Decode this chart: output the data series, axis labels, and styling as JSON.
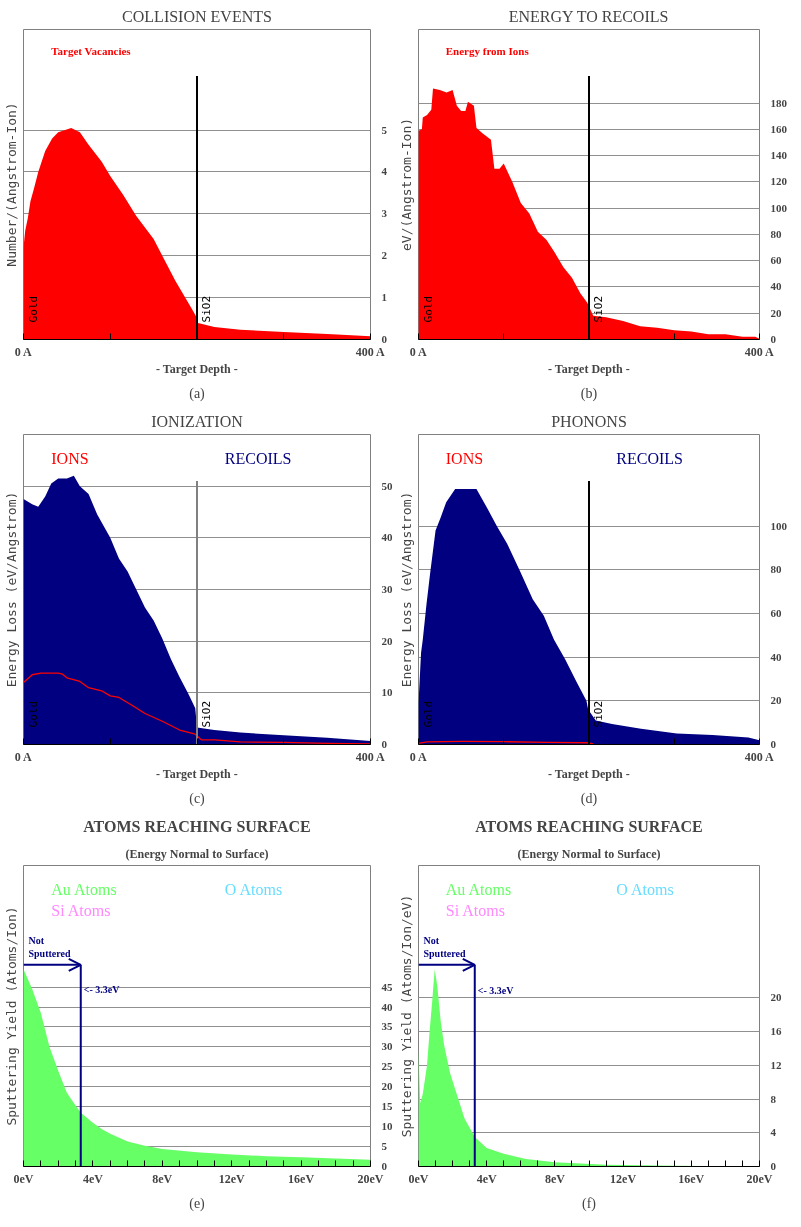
{
  "chart_data": [
    {
      "type": "area",
      "title": "COLLISION EVENTS",
      "ylabel": "Number/(Angstrom-Ion)",
      "xlabel": "- Target Depth -",
      "xlim": [
        0,
        400
      ],
      "ylim": [
        0,
        7.4
      ],
      "xticks": [
        {
          "value": 0,
          "label": "0 A"
        },
        {
          "value": 100,
          "label": null
        },
        {
          "value": 200,
          "label": null
        },
        {
          "value": 300,
          "label": null
        },
        {
          "value": 400,
          "label": "400 A"
        }
      ],
      "yticks": [
        0,
        1,
        2,
        3,
        4,
        5
      ],
      "grid": "y",
      "x": [
        0,
        2,
        5,
        8,
        12,
        17,
        25,
        33,
        40,
        55,
        65,
        75,
        90,
        100,
        115,
        130,
        150,
        160,
        175,
        185,
        195,
        199,
        200,
        220,
        250,
        300,
        350,
        400
      ],
      "series": [
        {
          "name": "Target Vacancies",
          "color": "#ff0000",
          "values": [
            2.2,
            2.6,
            2.9,
            3.3,
            3.6,
            4.0,
            4.5,
            4.8,
            4.95,
            5.05,
            4.95,
            4.65,
            4.25,
            3.9,
            3.45,
            2.95,
            2.4,
            2.0,
            1.4,
            1.05,
            0.7,
            0.55,
            0.4,
            0.3,
            0.23,
            0.18,
            0.13,
            0.08
          ]
        }
      ],
      "ref_lines": [
        {
          "axis": "x",
          "value": 200,
          "color": "#000000"
        }
      ],
      "annotations": [
        "Gold",
        "SiO2",
        "(a)"
      ]
    },
    {
      "type": "area",
      "title": "ENERGY TO RECOILS",
      "ylabel": "eV/(Angstrom-Ion)",
      "xlabel": "- Target Depth -",
      "xlim": [
        0,
        400
      ],
      "ylim": [
        0,
        236
      ],
      "xticks": [
        {
          "value": 0,
          "label": "0 A"
        },
        {
          "value": 100,
          "label": null
        },
        {
          "value": 200,
          "label": null
        },
        {
          "value": 300,
          "label": null
        },
        {
          "value": 400,
          "label": "400 A"
        }
      ],
      "yticks": [
        0,
        20,
        40,
        60,
        80,
        100,
        120,
        140,
        160,
        180
      ],
      "grid": "y",
      "x": [
        0,
        4,
        5,
        10,
        15,
        17,
        25,
        33,
        40,
        45,
        50,
        55,
        58,
        65,
        68,
        75,
        85,
        89,
        95,
        100,
        110,
        120,
        130,
        140,
        150,
        160,
        170,
        180,
        190,
        198,
        205,
        220,
        240,
        260,
        280,
        300,
        320,
        340,
        360,
        380,
        395,
        400
      ],
      "series": [
        {
          "name": "Energy from Ions",
          "color": "#ff0000",
          "values": [
            159,
            160,
            169,
            171,
            175,
            191,
            190,
            188,
            190,
            178,
            174,
            174,
            181,
            178,
            161,
            157,
            152,
            130,
            130,
            134,
            120,
            104,
            96,
            82,
            76,
            66,
            55,
            47,
            35,
            28,
            18,
            17,
            14,
            10,
            9,
            7,
            6,
            4,
            4,
            2,
            2,
            0.5
          ]
        }
      ],
      "ref_lines": [
        {
          "axis": "x",
          "value": 200,
          "color": "#000000"
        }
      ],
      "annotations": [
        "Gold",
        "SiO2",
        "(b)"
      ]
    },
    {
      "type": "area",
      "title": "IONIZATION",
      "ylabel": "Energy Loss (eV/Angstrom)",
      "xlabel": "- Target Depth -",
      "xlim": [
        0,
        400
      ],
      "ylim": [
        0,
        60
      ],
      "xticks": [
        {
          "value": 0,
          "label": "0 A"
        },
        {
          "value": 100,
          "label": null
        },
        {
          "value": 200,
          "label": null
        },
        {
          "value": 300,
          "label": null
        },
        {
          "value": 400,
          "label": "400 A"
        }
      ],
      "yticks": [
        0,
        10,
        20,
        30,
        40,
        50
      ],
      "grid": "y",
      "series": [
        {
          "name": "IONS",
          "type": "line",
          "color": "#ff0000",
          "x": [
            0,
            10,
            20,
            40,
            45,
            50,
            65,
            75,
            90,
            100,
            110,
            125,
            140,
            160,
            180,
            198,
            205,
            220,
            250,
            300,
            350,
            400
          ],
          "values": [
            12,
            13.5,
            13.8,
            13.8,
            13.6,
            12.9,
            12.2,
            11,
            10.4,
            9.4,
            9.1,
            7.6,
            6,
            4.5,
            2.8,
            2,
            0.9,
            0.9,
            0.5,
            0.4,
            0.2,
            0.1
          ]
        },
        {
          "name": "RECOILS",
          "color": "#000080",
          "x": [
            0,
            10,
            17,
            25,
            32,
            40,
            50,
            58,
            65,
            75,
            85,
            100,
            110,
            120,
            130,
            140,
            150,
            160,
            170,
            180,
            190,
            198,
            200,
            220,
            250,
            300,
            350,
            400
          ],
          "values": [
            47.5,
            46.5,
            46,
            48,
            50.5,
            51.5,
            51.5,
            52,
            50,
            48.5,
            44.5,
            40,
            36,
            33.5,
            30,
            26.5,
            24,
            20.5,
            16.5,
            13,
            9.8,
            7,
            3.3,
            2.8,
            2.3,
            1.8,
            1.3,
            0.7
          ]
        }
      ],
      "ref_lines": [
        {
          "axis": "x",
          "value": 200,
          "color": "#808080"
        }
      ],
      "annotations": [
        "Gold",
        "SiO2",
        "(c)"
      ]
    },
    {
      "type": "area",
      "title": "PHONONS",
      "ylabel": "Energy Loss (eV/Angstrom)",
      "xlabel": "- Target Depth -",
      "xlim": [
        0,
        400
      ],
      "ylim": [
        0,
        142
      ],
      "xticks": [
        {
          "value": 0,
          "label": "0 A"
        },
        {
          "value": 100,
          "label": null
        },
        {
          "value": 200,
          "label": null
        },
        {
          "value": 300,
          "label": null
        },
        {
          "value": 400,
          "label": "400 A"
        }
      ],
      "yticks": [
        0,
        20,
        40,
        60,
        80,
        100
      ],
      "grid": "y",
      "series": [
        {
          "name": "IONS",
          "type": "line",
          "color": "#ff0000",
          "x": [
            0,
            10,
            50,
            100,
            150,
            198,
            205
          ],
          "values": [
            0.5,
            1.2,
            1.4,
            1.3,
            1.0,
            0.8,
            0.3
          ]
        },
        {
          "name": "RECOILS",
          "color": "#000080",
          "x": [
            0,
            3,
            5,
            9.3,
            13.5,
            20,
            26,
            32.5,
            43,
            68,
            81,
            92,
            104,
            119,
            134,
            147,
            159,
            172,
            185,
            197,
            199,
            208,
            227,
            261,
            303,
            345,
            387,
            400
          ],
          "values": [
            19,
            42,
            48,
            64,
            78,
            98,
            104,
            111,
            117,
            117,
            108,
            100,
            92,
            79.5,
            66.5,
            59,
            48,
            39,
            29,
            20,
            16,
            11,
            9.4,
            7.2,
            5,
            4.3,
            3.2,
            2
          ]
        }
      ],
      "ref_lines": [
        {
          "axis": "x",
          "value": 200,
          "color": "#000000"
        }
      ],
      "annotations": [
        "Gold",
        "SiO2",
        "(d)"
      ]
    },
    {
      "type": "area",
      "title": "ATOMS REACHING SURFACE",
      "subtitle": "(Energy Normal to Surface)",
      "ylabel": "Sputtering Yield (Atoms/Ion)",
      "xlim": [
        0,
        20
      ],
      "ylim": [
        0,
        75.5
      ],
      "xticks": [
        {
          "value": 0,
          "label": "0eV"
        },
        {
          "value": 1,
          "label": null
        },
        {
          "value": 2,
          "label": null
        },
        {
          "value": 3,
          "label": null
        },
        {
          "value": 4,
          "label": "4eV"
        },
        {
          "value": 5,
          "label": null
        },
        {
          "value": 6,
          "label": null
        },
        {
          "value": 7,
          "label": null
        },
        {
          "value": 8,
          "label": "8eV"
        },
        {
          "value": 9,
          "label": null
        },
        {
          "value": 10,
          "label": null
        },
        {
          "value": 11,
          "label": null
        },
        {
          "value": 12,
          "label": "12eV"
        },
        {
          "value": 13,
          "label": null
        },
        {
          "value": 14,
          "label": null
        },
        {
          "value": 15,
          "label": null
        },
        {
          "value": 16,
          "label": "16eV"
        },
        {
          "value": 17,
          "label": null
        },
        {
          "value": 18,
          "label": null
        },
        {
          "value": 19,
          "label": null
        },
        {
          "value": 20,
          "label": "20eV"
        }
      ],
      "yticks": [
        0,
        5,
        10,
        15,
        20,
        25,
        30,
        35,
        40,
        45
      ],
      "grid": "y",
      "series": [
        {
          "name": "Au Atoms",
          "color": "#66ff66",
          "x": [
            0,
            0.5,
            1,
            1.5,
            2,
            2.5,
            3,
            3.3,
            4,
            4.5,
            5,
            6,
            7,
            8,
            10,
            12,
            14,
            16,
            18,
            20
          ],
          "values": [
            49.5,
            44.5,
            38.5,
            30,
            24,
            18.5,
            15.3,
            13.5,
            11,
            9.4,
            8.2,
            6.3,
            5.2,
            4.4,
            3.6,
            3.0,
            2.6,
            2.3,
            2.0,
            1.7
          ]
        },
        {
          "name": "O Atoms",
          "color": "#66ddff"
        },
        {
          "name": "Si Atoms",
          "color": "#ff88ff"
        }
      ],
      "ref_lines": [
        {
          "axis": "x",
          "value": 3.3,
          "color": "#000080"
        }
      ],
      "annotations": [
        "Not\nSputtered",
        {
          "text": "<- 3.3eV",
          "x": 3.3,
          "y": 44.3
        },
        "(e)"
      ]
    },
    {
      "type": "area",
      "title": "ATOMS REACHING SURFACE",
      "subtitle": "(Energy Normal to Surface)",
      "ylabel": "Sputtering Yield (Atoms/Ion/eV)",
      "xlim": [
        0,
        20
      ],
      "ylim": [
        0,
        35.7
      ],
      "xticks": [
        {
          "value": 0,
          "label": "0eV"
        },
        {
          "value": 1,
          "label": null
        },
        {
          "value": 2,
          "label": null
        },
        {
          "value": 3,
          "label": null
        },
        {
          "value": 4,
          "label": "4eV"
        },
        {
          "value": 5,
          "label": null
        },
        {
          "value": 6,
          "label": null
        },
        {
          "value": 7,
          "label": null
        },
        {
          "value": 8,
          "label": "8eV"
        },
        {
          "value": 9,
          "label": null
        },
        {
          "value": 10,
          "label": null
        },
        {
          "value": 11,
          "label": null
        },
        {
          "value": 12,
          "label": "12eV"
        },
        {
          "value": 13,
          "label": null
        },
        {
          "value": 14,
          "label": null
        },
        {
          "value": 15,
          "label": null
        },
        {
          "value": 16,
          "label": "16eV"
        },
        {
          "value": 17,
          "label": null
        },
        {
          "value": 18,
          "label": null
        },
        {
          "value": 19,
          "label": null
        },
        {
          "value": 20,
          "label": "20eV"
        }
      ],
      "yticks": [
        0,
        4,
        8,
        12,
        16,
        20
      ],
      "grid": "y",
      "series": [
        {
          "name": "Au Atoms",
          "color": "#66ff66",
          "x": [
            0,
            0.1,
            0.25,
            0.5,
            0.65,
            0.8,
            0.95,
            1.1,
            1.3,
            1.5,
            1.85,
            2.3,
            2.7,
            3.3,
            4,
            5,
            6.3,
            8,
            11,
            15,
            20
          ],
          "values": [
            14,
            7.5,
            8.6,
            12,
            16,
            19.5,
            23.4,
            21.4,
            17.3,
            14.4,
            11.1,
            8.2,
            5.7,
            3.5,
            2.2,
            1.5,
            0.9,
            0.5,
            0.2,
            0.1,
            0
          ]
        },
        {
          "name": "O Atoms",
          "color": "#66ddff"
        },
        {
          "name": "Si Atoms",
          "color": "#ff88ff"
        }
      ],
      "ref_lines": [
        {
          "axis": "x",
          "value": 3.3,
          "color": "#000080"
        }
      ],
      "annotations": [
        "Not\nSputtered",
        {
          "text": "<- 3.3eV",
          "x": 3.3,
          "y": 20.9
        },
        "(f)"
      ]
    }
  ]
}
